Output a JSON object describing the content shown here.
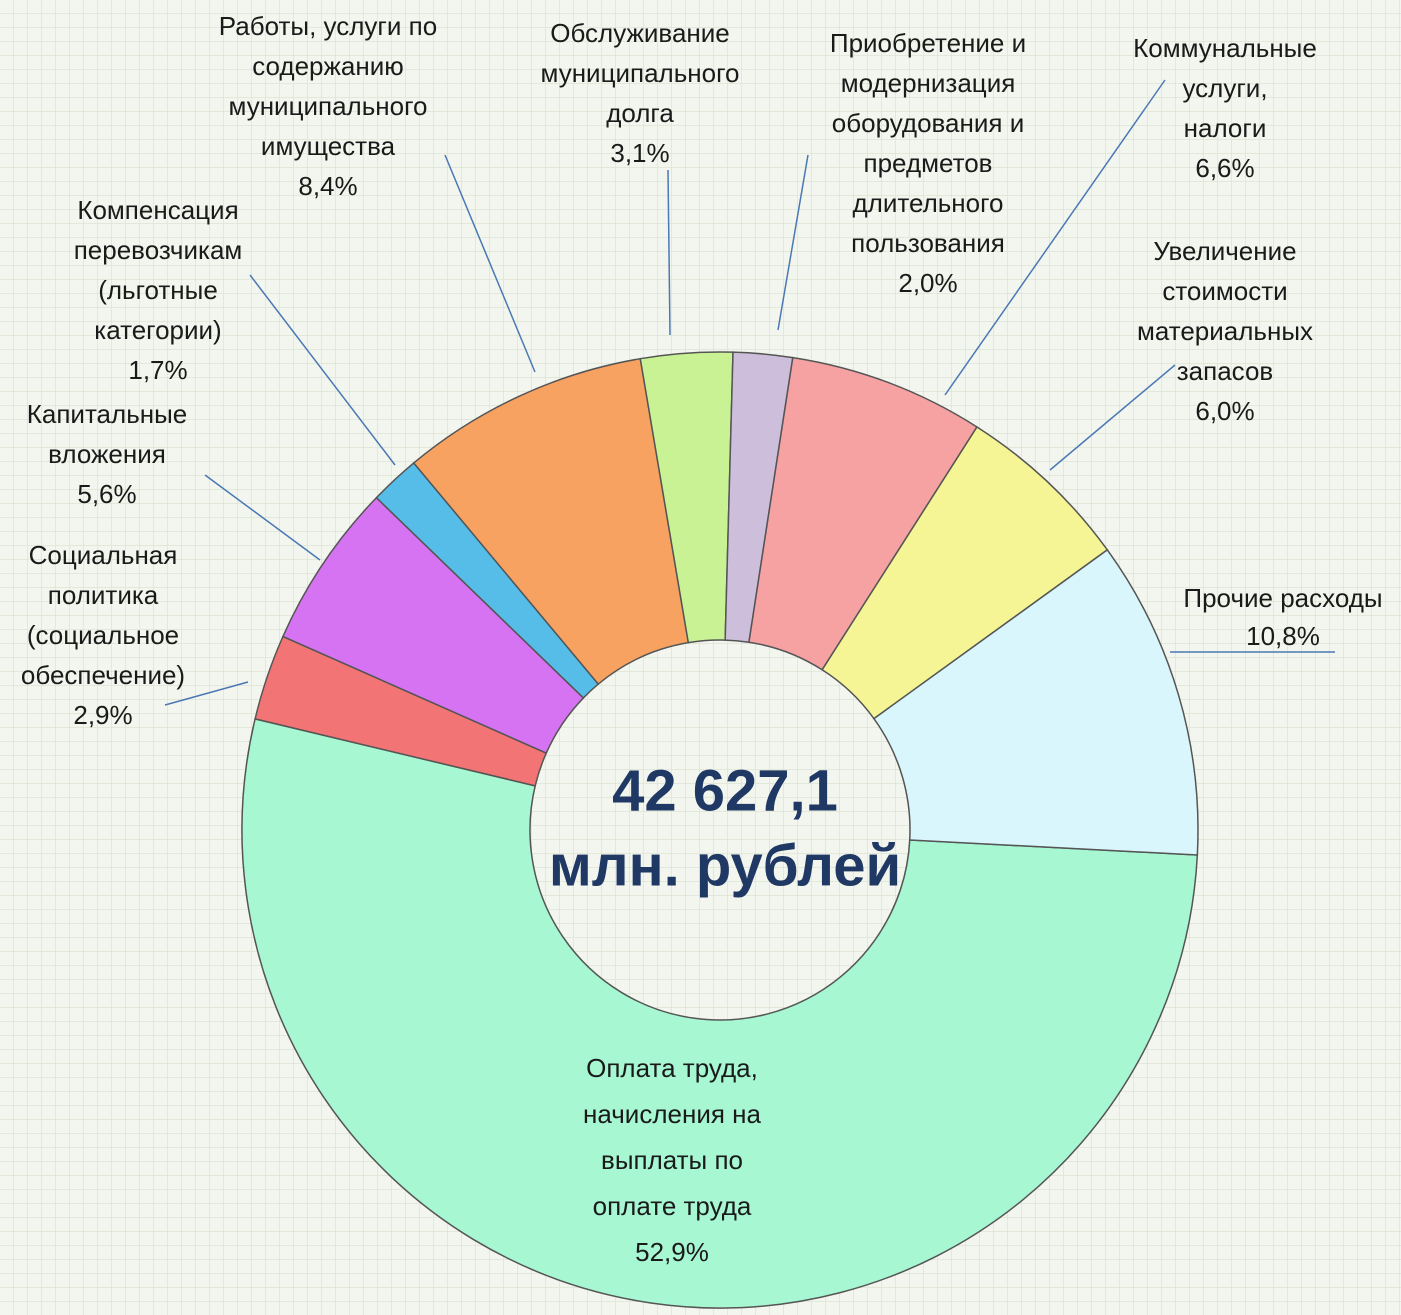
{
  "chart_data": {
    "type": "donut",
    "categories": [
      "Оплата труда,\nначисления на\nвыплаты по\nоплате труда",
      "Социальная\nполитика\n(социальное\nобеспечение)",
      "Капитальные\nвложения",
      "Компенсация\nперевозчикам\n(льготные\nкатегории)",
      "Работы, услуги по\nсодержанию\nмуниципального\nимущества",
      "Обслуживание\nмуниципального\nдолга",
      "Приобретение и\nмодернизация\nоборудования и\nпредметов\nдлительного\nпользования",
      "Коммунальные\nуслуги,\nналоги",
      "Увеличение\nстоимости\nматериальных\nзапасов",
      "Прочие расходы"
    ],
    "values": [
      52.9,
      2.9,
      5.6,
      1.7,
      8.4,
      3.1,
      2.0,
      6.6,
      6.0,
      10.8
    ],
    "value_labels": [
      "52,9%",
      "2,9%",
      "5,6%",
      "1,7%",
      "8,4%",
      "3,1%",
      "2,0%",
      "6,6%",
      "6,0%",
      "10,8%"
    ],
    "colors": [
      "#a6f7d2",
      "#f27474",
      "#d673f2",
      "#55bde8",
      "#f8a262",
      "#c9f294",
      "#cdbfdc",
      "#f7a2a2",
      "#f5f595",
      "#d9f6fc"
    ],
    "center_text": [
      "42 627,1",
      "млн. рублей"
    ]
  }
}
